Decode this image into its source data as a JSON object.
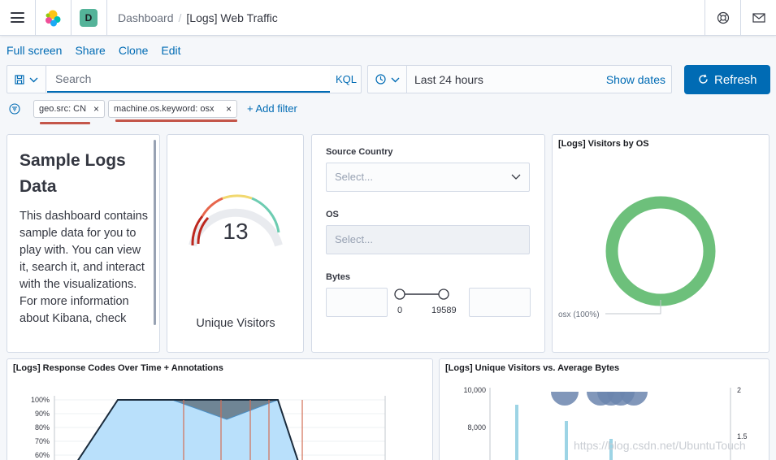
{
  "header": {
    "space_initial": "D",
    "breadcrumb_parent": "Dashboard",
    "breadcrumb_separator": "/",
    "breadcrumb_current": "[Logs] Web Traffic",
    "icons": [
      "menu-icon",
      "elastic-logo",
      "help-icon",
      "mail-icon"
    ]
  },
  "topnav": {
    "full_screen": "Full screen",
    "share": "Share",
    "clone": "Clone",
    "edit": "Edit"
  },
  "query": {
    "placeholder": "Search",
    "value": "",
    "language": "KQL"
  },
  "date": {
    "range": "Last 24 hours",
    "show_dates": "Show dates"
  },
  "refresh_label": "Refresh",
  "filters": {
    "items": [
      {
        "label": "geo.src: CN"
      },
      {
        "label": "machine.os.keyword: osx"
      }
    ],
    "add_label": "+ Add filter"
  },
  "colors": {
    "accent": "#006bb4",
    "annotation_red": "#c4564a",
    "donut_green": "#6dc07b",
    "bar_blue": "#9dd4e5",
    "area_fill": "#b9e0fb"
  },
  "panels": {
    "markdown": {
      "title": "Sample Logs Data",
      "body": "This dashboard contains sample data for you to play with. You can view it, search it, and interact with the visualizations. For more information about Kibana, check"
    },
    "gauge": {
      "value": "13",
      "label": "Unique Visitors"
    },
    "controls": {
      "source_country_label": "Source Country",
      "source_country_placeholder": "Select...",
      "os_label": "OS",
      "os_placeholder": "Select...",
      "bytes_label": "Bytes",
      "bytes_min": "0",
      "bytes_max": "19589"
    },
    "visitors_by_os": {
      "title": "[Logs] Visitors by OS",
      "legend": "osx (100%)"
    },
    "response_codes": {
      "title": "[Logs] Response Codes Over Time + Annotations",
      "y_ticks": [
        "100%",
        "90%",
        "80%",
        "70%",
        "60%"
      ]
    },
    "visitors_vs_bytes": {
      "title": "[Logs] Unique Visitors vs. Average Bytes",
      "y_left_ticks": [
        "10,000",
        "8,000"
      ],
      "y_right_ticks": [
        "2",
        "1.5"
      ]
    }
  },
  "watermark": "https://blog.csdn.net/UbuntuTouch"
}
